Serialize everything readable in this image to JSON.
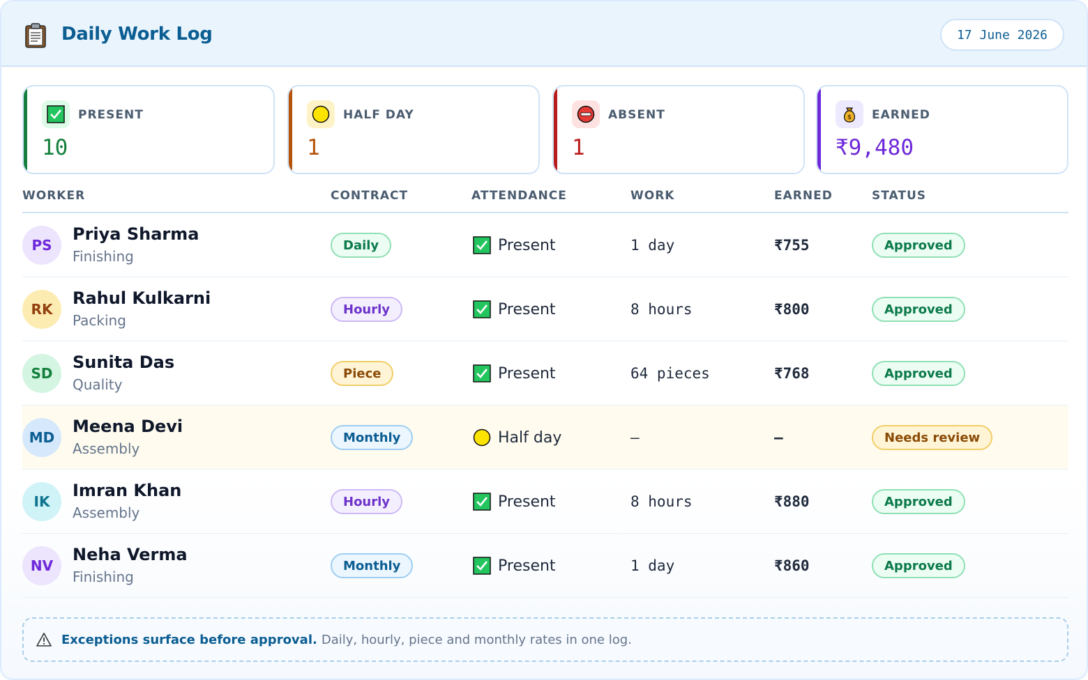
{
  "header": {
    "icon": "clipboard-icon",
    "title": "Daily Work Log",
    "date": "17 June 2026"
  },
  "summary": [
    {
      "key": "present",
      "icon": "check-box-icon",
      "label": "PRESENT",
      "value": "10",
      "accent": "#15803d",
      "soft": "#dcfce7"
    },
    {
      "key": "half-day",
      "icon": "yellow-circle-icon",
      "label": "HALF DAY",
      "value": "1",
      "accent": "#b45309",
      "soft": "#fef3c7"
    },
    {
      "key": "absent",
      "icon": "no-entry-icon",
      "label": "ABSENT",
      "value": "1",
      "accent": "#b91c1c",
      "soft": "#fee2e2"
    },
    {
      "key": "earned",
      "icon": "money-bag-icon",
      "label": "EARNED",
      "value": "₹9,480",
      "accent": "#6d28d9",
      "soft": "#ede9fe"
    }
  ],
  "table": {
    "headers": [
      "WORKER",
      "CONTRACT",
      "ATTENDANCE",
      "WORK",
      "EARNED",
      "STATUS"
    ],
    "rows": [
      {
        "initials": "PS",
        "name": "Priya Sharma",
        "dept": "Finishing",
        "avatar_bg": "#ede4fd",
        "avatar_fg": "#6d28d9",
        "contract": "Daily",
        "contract_kind": "daily",
        "attendance": "Present",
        "attendance_kind": "present",
        "work": "1 day",
        "earned": "₹755",
        "status": "Approved",
        "status_kind": "ok"
      },
      {
        "initials": "RK",
        "name": "Rahul Kulkarni",
        "dept": "Packing",
        "avatar_bg": "#fdecb2",
        "avatar_fg": "#92400e",
        "contract": "Hourly",
        "contract_kind": "hourly",
        "attendance": "Present",
        "attendance_kind": "present",
        "work": "8 hours",
        "earned": "₹800",
        "status": "Approved",
        "status_kind": "ok"
      },
      {
        "initials": "SD",
        "name": "Sunita Das",
        "dept": "Quality",
        "avatar_bg": "#d3f5e1",
        "avatar_fg": "#15803d",
        "contract": "Piece",
        "contract_kind": "piece",
        "attendance": "Present",
        "attendance_kind": "present",
        "work": "64 pieces",
        "earned": "₹768",
        "status": "Approved",
        "status_kind": "ok"
      },
      {
        "initials": "MD",
        "name": "Meena Devi",
        "dept": "Assembly",
        "avatar_bg": "#d6e8fb",
        "avatar_fg": "#0b5d92",
        "contract": "Monthly",
        "contract_kind": "monthly",
        "attendance": "Half day",
        "attendance_kind": "half",
        "work": "–",
        "earned": "–",
        "status": "Needs review",
        "status_kind": "warn"
      },
      {
        "initials": "IK",
        "name": "Imran Khan",
        "dept": "Assembly",
        "avatar_bg": "#cff3f6",
        "avatar_fg": "#0e7490",
        "contract": "Hourly",
        "contract_kind": "hourly",
        "attendance": "Present",
        "attendance_kind": "present",
        "work": "8 hours",
        "earned": "₹880",
        "status": "Approved",
        "status_kind": "ok"
      },
      {
        "initials": "NV",
        "name": "Neha Verma",
        "dept": "Finishing",
        "avatar_bg": "#ede4fd",
        "avatar_fg": "#6d28d9",
        "contract": "Monthly",
        "contract_kind": "monthly",
        "attendance": "Present",
        "attendance_kind": "present",
        "work": "1 day",
        "earned": "₹860",
        "status": "Approved",
        "status_kind": "ok"
      }
    ]
  },
  "note": {
    "icon": "warning-icon",
    "strong": "Exceptions surface before approval.",
    "text": "Daily, hourly, piece and monthly rates in one log."
  }
}
